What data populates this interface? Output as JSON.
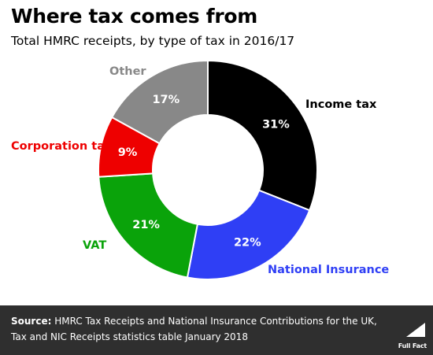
{
  "title": "Where tax comes from",
  "subtitle": "Total HMRC receipts, by type of tax in 2016/17",
  "chart_data": {
    "type": "pie",
    "donut": true,
    "categories": [
      "Income tax",
      "National Insurance",
      "VAT",
      "Corporation tax",
      "Other"
    ],
    "values": [
      31,
      22,
      21,
      9,
      17
    ],
    "value_labels": [
      "31%",
      "22%",
      "21%",
      "9%",
      "17%"
    ],
    "colors": [
      "#000000",
      "#2f3ff5",
      "#0aa30a",
      "#ee0000",
      "#888888"
    ],
    "title": "Where tax comes from",
    "subtitle": "Total HMRC receipts, by type of tax in 2016/17",
    "legend": "none (direct labels)"
  },
  "footer": {
    "source_label": "Source:",
    "source_text": "HMRC Tax Receipts and National Insurance Contributions for the UK, Tax and NIC Receipts statistics table January 2018",
    "logo_text": "Full Fact",
    "background": "#2f2f2f"
  }
}
